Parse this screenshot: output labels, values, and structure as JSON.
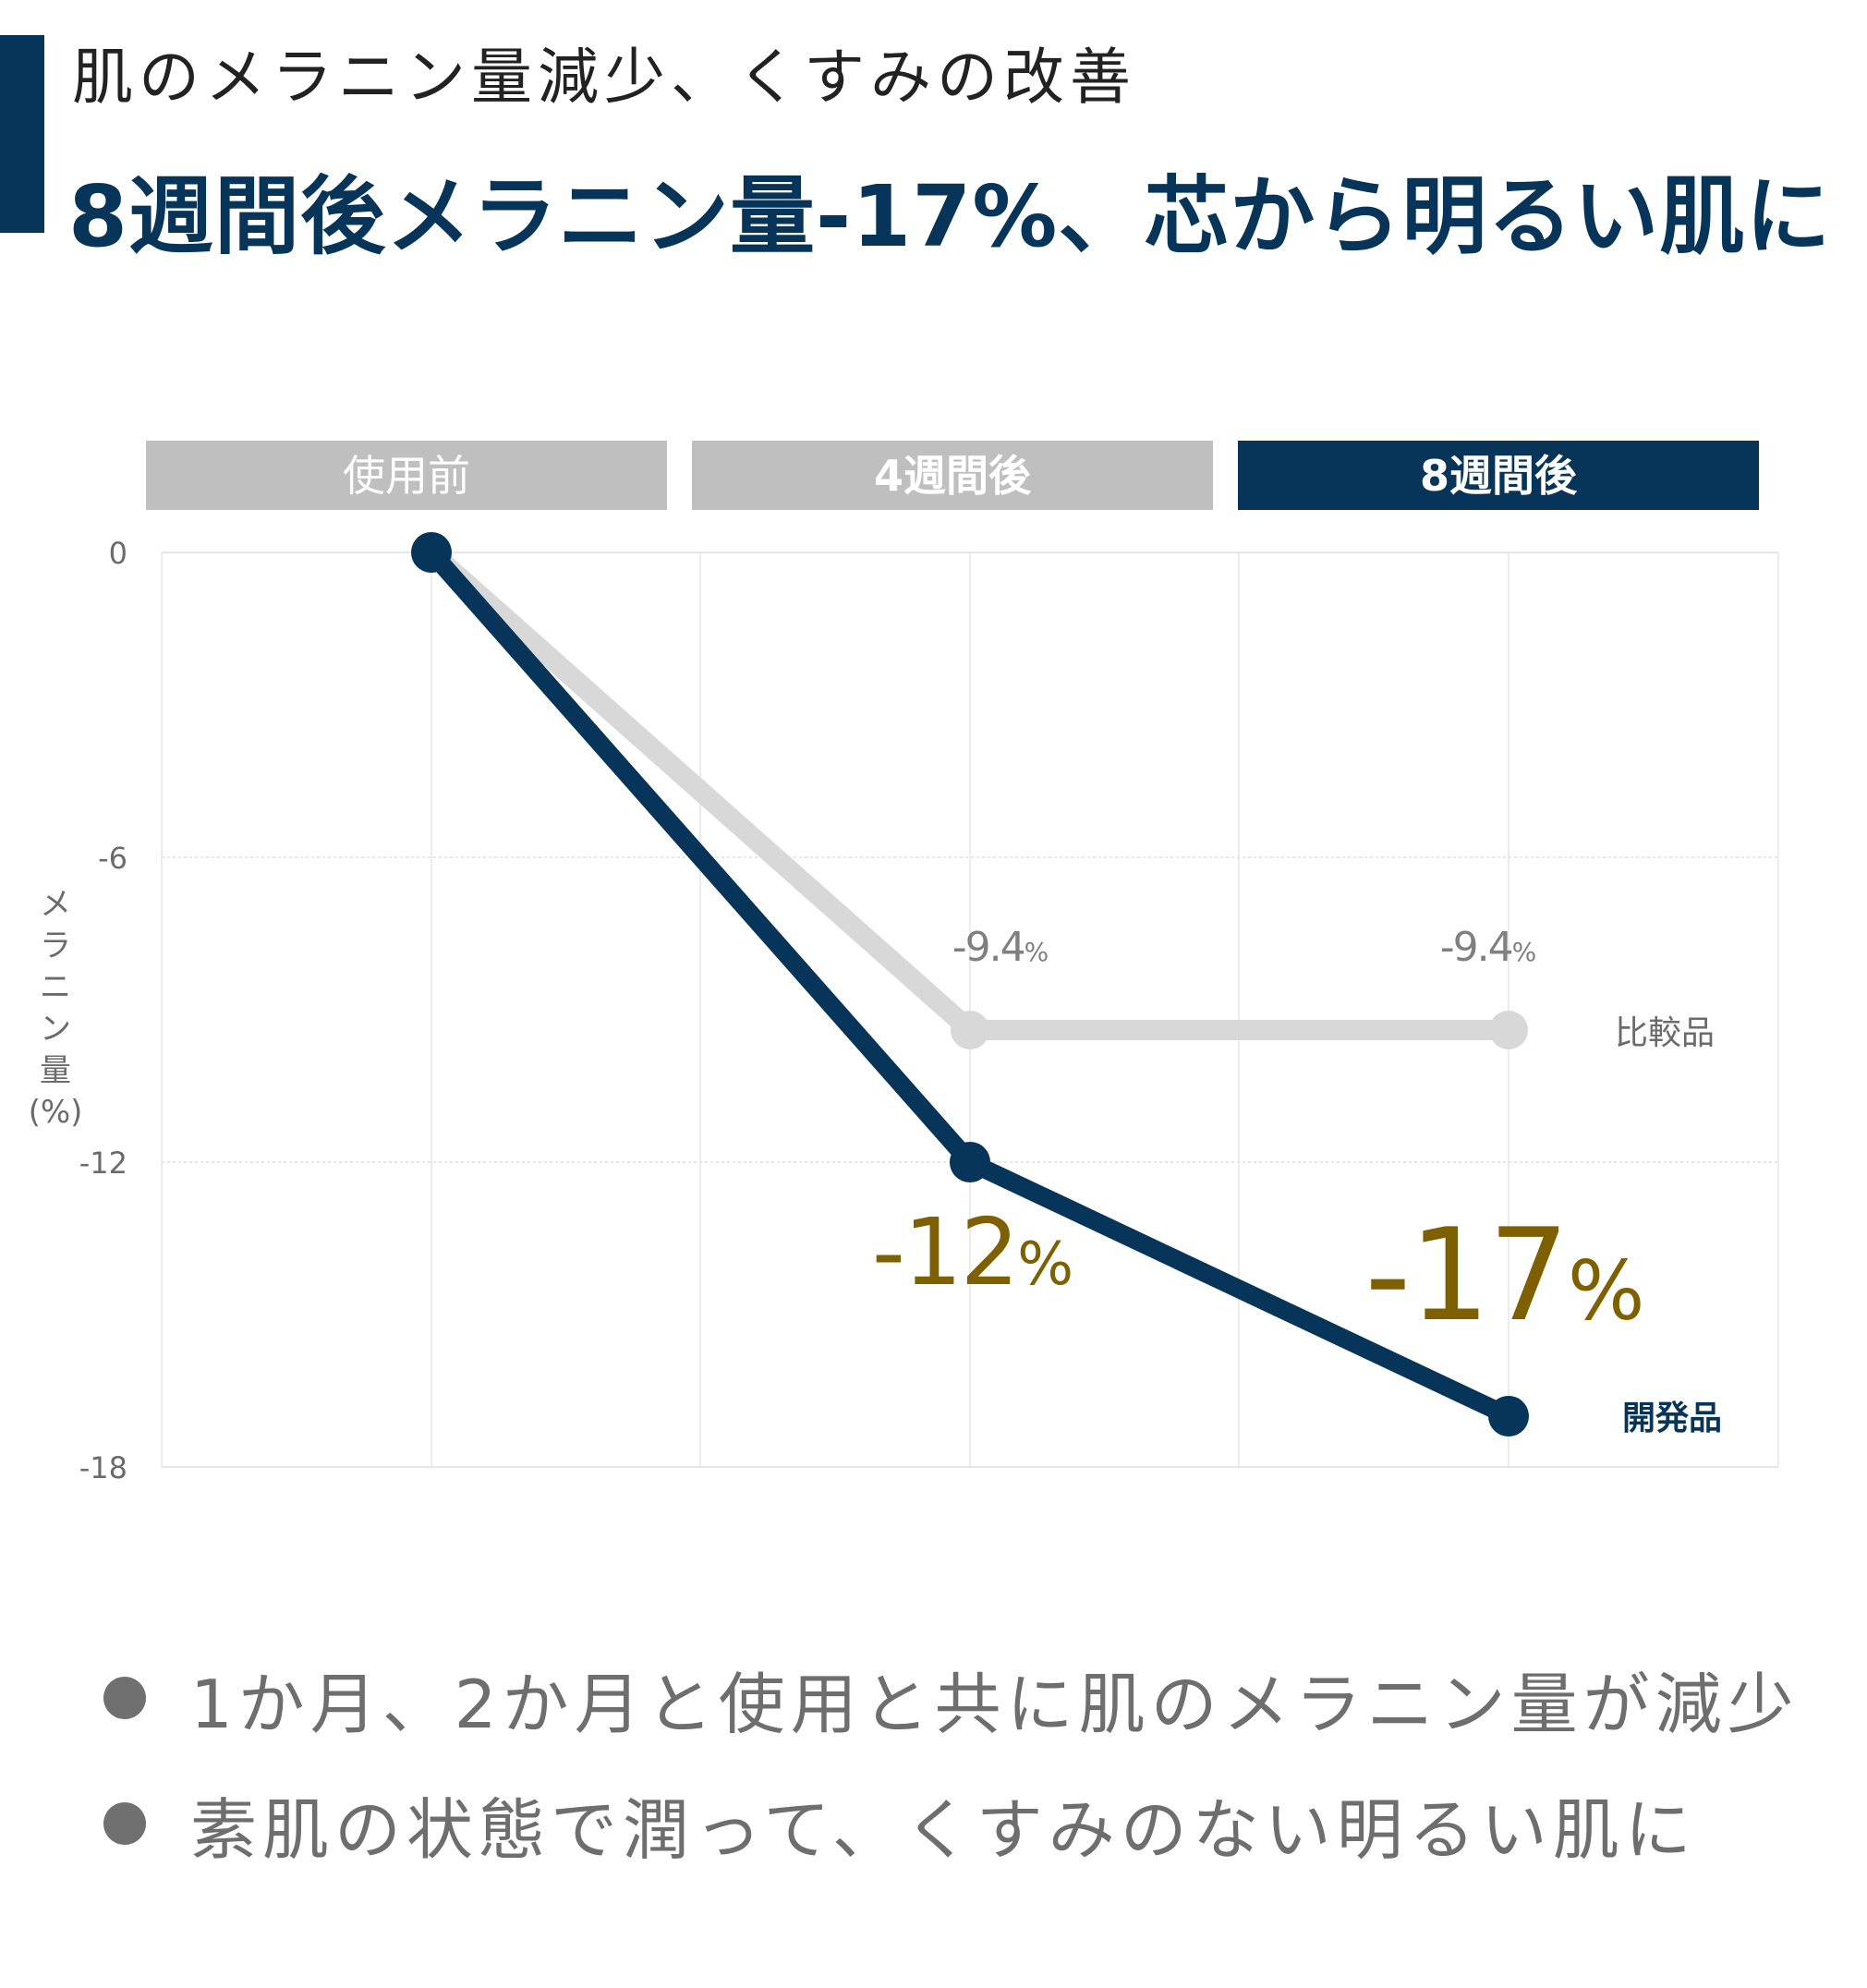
{
  "header": {
    "subtitle": "肌のメラニン量減少、くすみの改善",
    "title": "8週間後メラニン量-17%、芯から明るい肌に"
  },
  "colors": {
    "navy": "#073459",
    "gray_series": "#d8d8d8",
    "gray_header": "#bfbfbf",
    "gold": "#7f6000",
    "label_gray": "#7f7f7f"
  },
  "chart_data": {
    "type": "line",
    "categories": [
      "使用前",
      "4週間後",
      "8週間後"
    ],
    "highlight_category": "8週間後",
    "ylabel": "メラニン量(%)",
    "ylim": [
      -18,
      0
    ],
    "yticks": [
      "0",
      "-6",
      "-12",
      "-18"
    ],
    "grid": true,
    "series": [
      {
        "name": "比較品",
        "values": [
          0,
          -9.4,
          -9.4
        ],
        "data_labels": [
          "",
          "-9.4%",
          "-9.4%"
        ],
        "color": "#d8d8d8"
      },
      {
        "name": "開発品",
        "values": [
          0,
          -12,
          -17
        ],
        "data_labels": [
          "",
          "-12%",
          "-17%"
        ],
        "color": "#073459"
      }
    ]
  },
  "bullets": [
    "1か月、2か月と使用と共に肌のメラニン量が減少",
    "素肌の状態で潤って、くすみのない明るい肌に"
  ]
}
